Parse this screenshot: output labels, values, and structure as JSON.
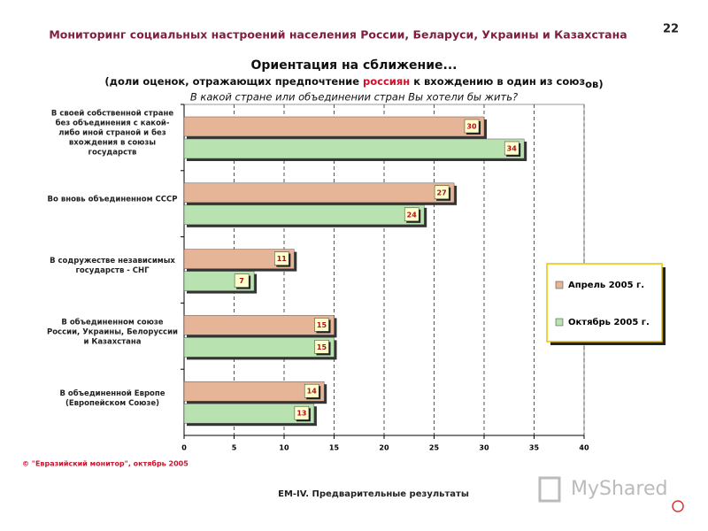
{
  "header": "Мониторинг социальных настроений населения России, Беларуси, Украины и Казахстана",
  "page_number": "22",
  "chart_data": {
    "type": "hbar",
    "title": "Ориентация на сближение...",
    "subtitle_parts": [
      "(доли оценок, отражающих предпочтение",
      "россиян",
      "к вхождению в один из союз",
      "ов)"
    ],
    "question": "В какой стране или объединении стран Вы хотели бы жить?",
    "categories": [
      "В своей собственной стране без объединения с какой-либо иной страной и без вхождения в союзы государств",
      "Во вновь объединенном СССР",
      "В содружестве независимых государств - СНГ",
      "В объединенном союзе России, Украины, Белоруссии и Казахстана",
      "В объединенной Европе (Европейском Союзе)"
    ],
    "series": [
      {
        "name": "Апрель 2005 г.",
        "color": "#e6b496",
        "values": [
          30,
          27,
          11,
          15,
          14
        ]
      },
      {
        "name": "Октябрь 2005 г.",
        "color": "#b9e2b1",
        "values": [
          34,
          24,
          7,
          15,
          13
        ]
      }
    ],
    "xlim": [
      0,
      40
    ],
    "xticks": [
      0,
      5,
      10,
      15,
      20,
      25,
      30,
      35,
      40
    ],
    "grid": true,
    "legend": "right"
  },
  "footnote": "© \"Евразийский монитор\", октябрь 2005",
  "footer": "ЕМ-IV. Предварительные результаты",
  "watermark": "MyShared"
}
